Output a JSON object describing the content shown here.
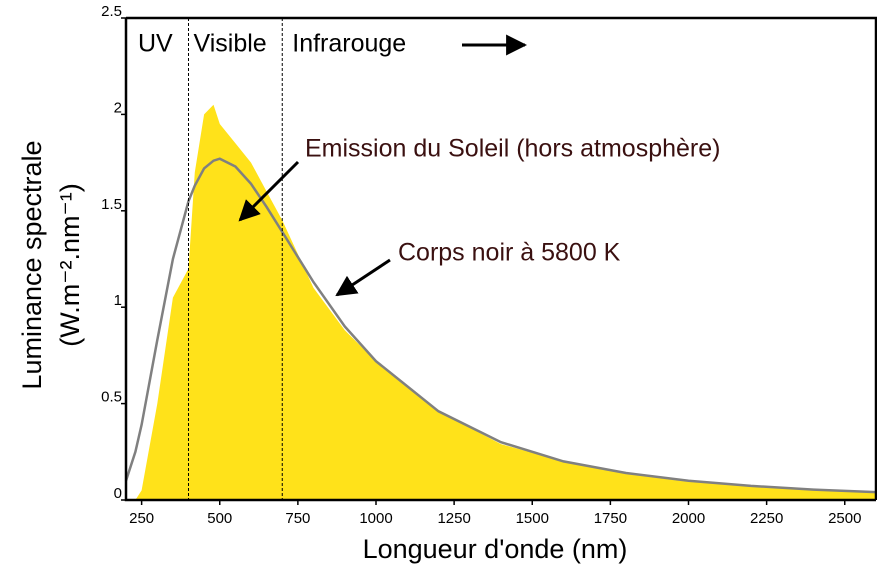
{
  "chart_data": {
    "type": "area_line",
    "xlabel": "Longueur d'onde (nm)",
    "ylabel": [
      "Luminance spectrale",
      "(W.m⁻².nm⁻¹)"
    ],
    "x": [
      200,
      230,
      250,
      300,
      350,
      400,
      420,
      450,
      480,
      500,
      550,
      600,
      650,
      700,
      800,
      900,
      1000,
      1200,
      1400,
      1600,
      1800,
      2000,
      2200,
      2400,
      2600
    ],
    "series": [
      {
        "name": "Emission du Soleil (hors atmosphère)",
        "color": "#ffe21a",
        "kind": "area",
        "values": [
          0,
          0,
          0.05,
          0.5,
          1.05,
          1.2,
          1.7,
          2.0,
          2.05,
          1.95,
          1.85,
          1.75,
          1.6,
          1.45,
          1.1,
          0.88,
          0.72,
          0.46,
          0.29,
          0.2,
          0.135,
          0.095,
          0.07,
          0.052,
          0.038
        ]
      },
      {
        "name": "Corps noir à 5800 K",
        "color": "#808080",
        "kind": "line",
        "values": [
          0.1,
          0.25,
          0.39,
          0.83,
          1.25,
          1.55,
          1.63,
          1.72,
          1.76,
          1.77,
          1.73,
          1.64,
          1.52,
          1.39,
          1.13,
          0.9,
          0.72,
          0.46,
          0.3,
          0.2,
          0.14,
          0.1,
          0.073,
          0.054,
          0.041
        ]
      }
    ],
    "regions": [
      {
        "label": "UV"
      },
      {
        "label": "Visible"
      },
      {
        "label": "Infrarouge"
      }
    ],
    "region_bounds": [
      400,
      700
    ],
    "xlim": [
      200,
      2600
    ],
    "ylim": [
      0,
      2.5
    ],
    "xticks": [
      250,
      500,
      750,
      1000,
      1250,
      1500,
      1750,
      2000,
      2250,
      2500
    ],
    "yticks": [
      0,
      0.5,
      1,
      1.5,
      2,
      2.5
    ]
  }
}
